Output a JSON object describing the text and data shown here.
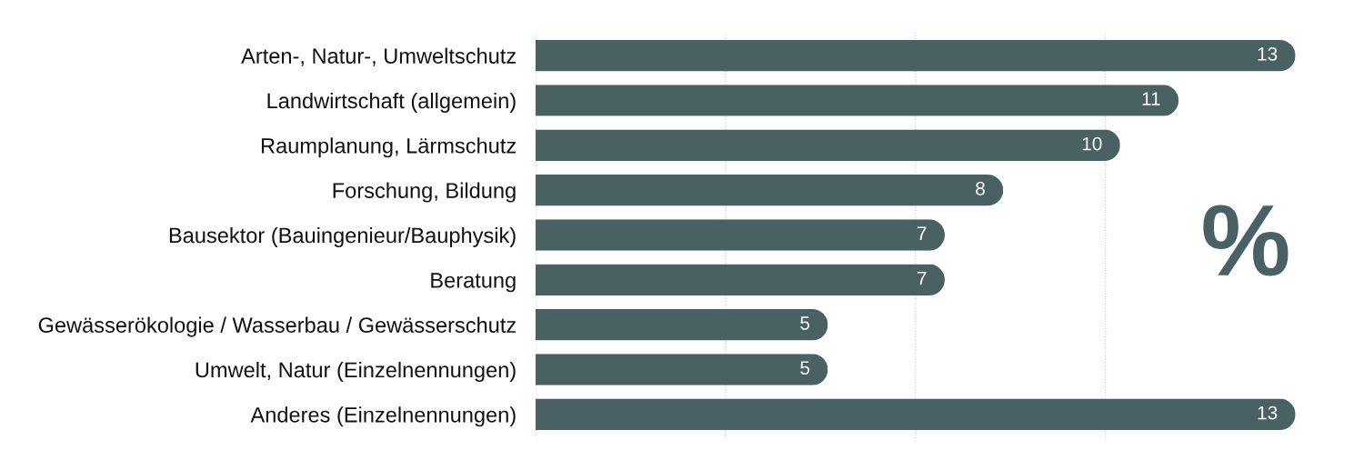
{
  "chart_data": {
    "type": "bar",
    "orientation": "horizontal",
    "categories": [
      "Arten-, Natur-, Umweltschutz",
      "Landwirtschaft (allgemein)",
      "Raumplanung, Lärmschutz",
      "Forschung, Bildung",
      "Bausektor (Bauingenieur/Bauphysik)",
      "Beratung",
      "Gewässerökologie / Wasserbau / Gewässerschutz",
      "Umwelt, Natur (Einzelnennungen)",
      "Anderes (Einzelnennungen)"
    ],
    "values": [
      13,
      11,
      10,
      8,
      7,
      7,
      5,
      5,
      13
    ],
    "color": "#4a6163",
    "data_labels": true,
    "xticks": [
      {
        "value": 0,
        "label": null
      },
      {
        "value": 3.25,
        "label": null
      },
      {
        "value": 6.5,
        "label": null
      },
      {
        "value": 9.75,
        "label": null
      }
    ],
    "grid": "x",
    "tick_labels": "y",
    "annotations": [
      "%"
    ]
  }
}
